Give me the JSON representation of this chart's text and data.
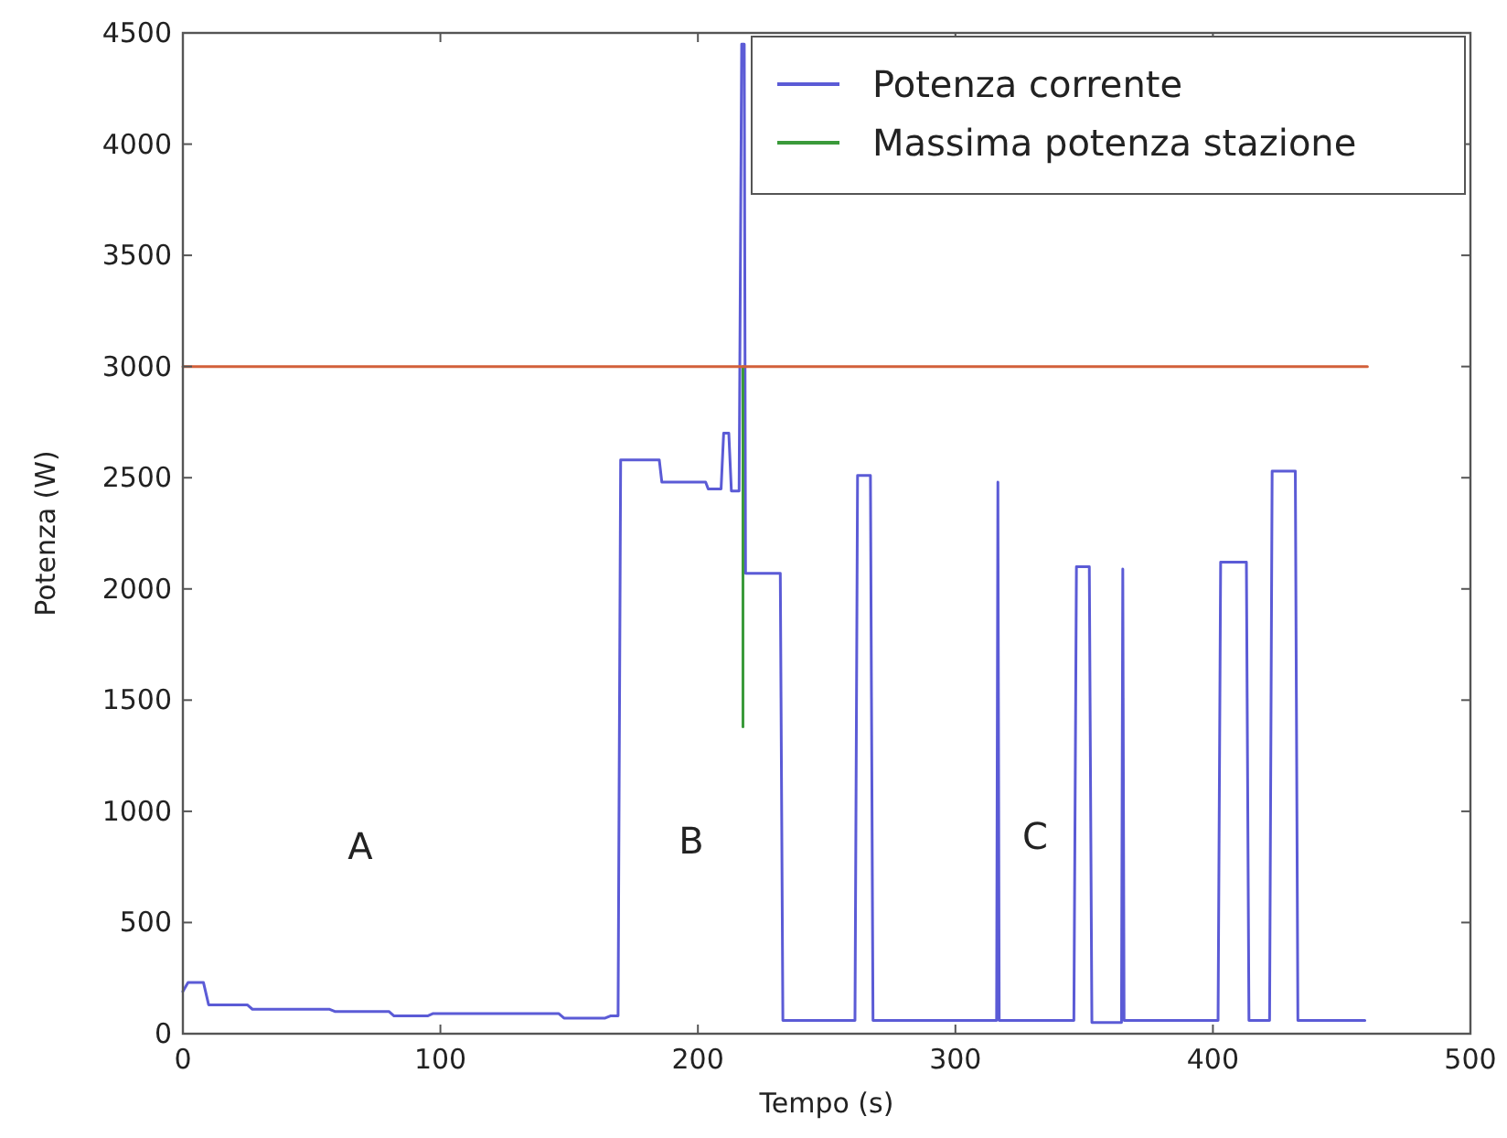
{
  "chart_data": {
    "type": "line",
    "xlabel": "Tempo (s)",
    "ylabel": "Potenza (W)",
    "xlim": [
      0,
      500
    ],
    "xticks": [
      0,
      100,
      200,
      300,
      400,
      500
    ],
    "ylim": [
      0,
      4500
    ],
    "yticks": [
      0,
      500,
      1000,
      1500,
      2000,
      2500,
      3000,
      3500,
      4000,
      4500
    ],
    "legend": "top right",
    "grid": false,
    "marker": "none",
    "line_style": "solid",
    "series": [
      {
        "name": "Potenza corrente",
        "color": "#5b5bd6",
        "x": [
          0,
          2,
          8,
          10,
          25,
          27,
          57,
          59,
          80,
          82,
          95,
          97,
          146,
          148,
          164,
          166,
          169,
          170,
          185,
          186,
          203,
          204,
          209,
          210,
          212,
          213,
          216,
          217,
          218,
          218.5,
          232,
          233,
          261,
          262,
          267,
          268,
          316,
          316.5,
          317,
          346,
          347,
          352,
          353,
          364.5,
          365,
          365.5,
          402,
          403,
          413,
          414,
          422,
          423,
          432,
          433,
          459
        ],
        "values": [
          190,
          230,
          230,
          130,
          130,
          110,
          110,
          100,
          100,
          80,
          80,
          90,
          90,
          70,
          70,
          80,
          80,
          2580,
          2580,
          2480,
          2480,
          2450,
          2450,
          2700,
          2700,
          2440,
          2440,
          4450,
          4450,
          2070,
          2070,
          60,
          60,
          2510,
          2510,
          60,
          60,
          2480,
          60,
          60,
          2100,
          2100,
          50,
          50,
          2090,
          60,
          60,
          2120,
          2120,
          60,
          60,
          2530,
          2530,
          60,
          60
        ]
      },
      {
        "name": "Massima potenza stazione",
        "color": "#3a9a3a",
        "x": [
          217.5,
          217.5
        ],
        "values": [
          1380,
          3000
        ]
      },
      {
        "color": "#d2603a",
        "x": [
          0,
          460
        ],
        "values": [
          3000,
          3000
        ]
      }
    ],
    "annotations": [
      "A",
      "B",
      "C"
    ]
  }
}
